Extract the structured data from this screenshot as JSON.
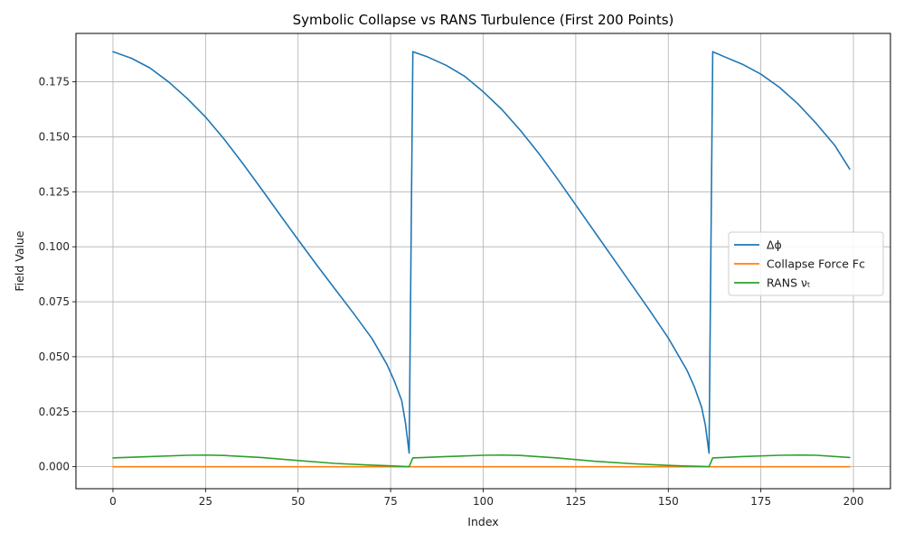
{
  "chart_data": {
    "type": "line",
    "title": "Symbolic Collapse vs RANS Turbulence (First 200 Points)",
    "xlabel": "Index",
    "ylabel": "Field Value",
    "xlim": [
      -10,
      210
    ],
    "ylim": [
      -0.01,
      0.197
    ],
    "xticks": [
      0,
      25,
      50,
      75,
      100,
      125,
      150,
      175,
      200
    ],
    "yticks": [
      0.0,
      0.025,
      0.05,
      0.075,
      0.1,
      0.125,
      0.15,
      0.175
    ],
    "ytick_labels": [
      "0.000",
      "0.025",
      "0.050",
      "0.075",
      "0.100",
      "0.125",
      "0.150",
      "0.175"
    ],
    "grid": true,
    "legend_position": "center-right",
    "series": [
      {
        "name": "Δϕ",
        "color": "#1f77b4",
        "x": [
          0,
          5,
          10,
          15,
          20,
          25,
          30,
          35,
          40,
          45,
          50,
          55,
          60,
          65,
          70,
          74,
          76,
          78,
          79,
          80,
          81,
          85,
          90,
          95,
          100,
          105,
          110,
          115,
          120,
          125,
          130,
          135,
          140,
          145,
          150,
          155,
          157,
          159,
          160,
          161,
          162,
          165,
          170,
          175,
          180,
          185,
          190,
          195,
          199
        ],
        "values": [
          0.1887,
          0.1857,
          0.1813,
          0.175,
          0.1675,
          0.159,
          0.149,
          0.138,
          0.1265,
          0.1148,
          0.1032,
          0.0918,
          0.0807,
          0.0697,
          0.0582,
          0.0465,
          0.039,
          0.03,
          0.02,
          0.0062,
          0.1887,
          0.1863,
          0.1825,
          0.1775,
          0.1705,
          0.1625,
          0.153,
          0.1425,
          0.131,
          0.119,
          0.107,
          0.095,
          0.083,
          0.071,
          0.0585,
          0.044,
          0.0365,
          0.027,
          0.019,
          0.0062,
          0.1887,
          0.1865,
          0.183,
          0.1785,
          0.1725,
          0.165,
          0.156,
          0.146,
          0.1353
        ]
      },
      {
        "name": "Collapse Force Fc",
        "color": "#ff7f0e",
        "x": [
          0,
          199
        ],
        "values": [
          0.0,
          0.0
        ]
      },
      {
        "name": "RANS νₜ",
        "color": "#2ca02c",
        "x": [
          0,
          10,
          20,
          25,
          30,
          40,
          50,
          60,
          70,
          75,
          79,
          80,
          81,
          90,
          100,
          105,
          110,
          120,
          130,
          140,
          150,
          155,
          160,
          161,
          162,
          170,
          180,
          185,
          190,
          199
        ],
        "values": [
          0.004,
          0.0046,
          0.0052,
          0.0053,
          0.0051,
          0.0042,
          0.0028,
          0.0015,
          0.0007,
          0.0004,
          0.0001,
          0.0,
          0.004,
          0.0046,
          0.0052,
          0.0053,
          0.0051,
          0.004,
          0.0025,
          0.0014,
          0.0006,
          0.0003,
          0.0001,
          0.0,
          0.004,
          0.0046,
          0.0052,
          0.0053,
          0.0052,
          0.0042
        ]
      }
    ]
  }
}
